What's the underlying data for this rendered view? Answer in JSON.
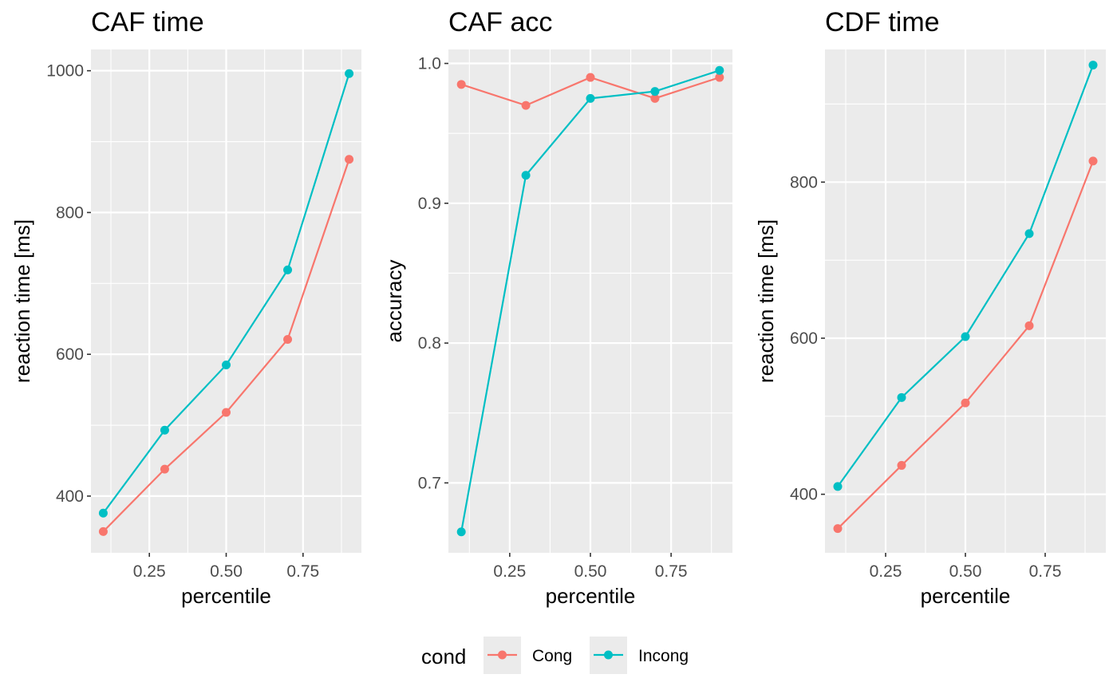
{
  "chart_data": [
    {
      "type": "line",
      "title": "CAF time",
      "xlabel": "percentile",
      "ylabel": "reaction time [ms]",
      "xlim": [
        0.06,
        0.94
      ],
      "ylim": [
        320,
        1030
      ],
      "xticks": [
        0.25,
        0.5,
        0.75
      ],
      "xtick_labels": [
        "0.25",
        "0.50",
        "0.75"
      ],
      "yticks": [
        400,
        600,
        800,
        1000
      ],
      "ytick_labels": [
        "400",
        "600",
        "800",
        "1000"
      ],
      "grid": true,
      "x": [
        0.1,
        0.3,
        0.5,
        0.7,
        0.9
      ],
      "series": [
        {
          "name": "Cong",
          "color": "#f8766d",
          "values": [
            350,
            438,
            518,
            621,
            875
          ]
        },
        {
          "name": "Incong",
          "color": "#00bfc4",
          "values": [
            376,
            493,
            585,
            719,
            996
          ]
        }
      ]
    },
    {
      "type": "line",
      "title": "CAF acc",
      "xlabel": "percentile",
      "ylabel": "accuracy",
      "xlim": [
        0.06,
        0.94
      ],
      "ylim": [
        0.65,
        1.01
      ],
      "xticks": [
        0.25,
        0.5,
        0.75
      ],
      "xtick_labels": [
        "0.25",
        "0.50",
        "0.75"
      ],
      "yticks": [
        0.7,
        0.8,
        0.9,
        1.0
      ],
      "ytick_labels": [
        "0.7",
        "0.8",
        "0.9",
        "1.0"
      ],
      "grid": true,
      "x": [
        0.1,
        0.3,
        0.5,
        0.7,
        0.9
      ],
      "series": [
        {
          "name": "Cong",
          "color": "#f8766d",
          "values": [
            0.985,
            0.97,
            0.99,
            0.975,
            0.99
          ]
        },
        {
          "name": "Incong",
          "color": "#00bfc4",
          "values": [
            0.665,
            0.92,
            0.975,
            0.98,
            0.995
          ]
        }
      ]
    },
    {
      "type": "line",
      "title": "CDF time",
      "xlabel": "percentile",
      "ylabel": "reaction time [ms]",
      "xlim": [
        0.06,
        0.94
      ],
      "ylim": [
        325,
        970
      ],
      "xticks": [
        0.25,
        0.5,
        0.75
      ],
      "xtick_labels": [
        "0.25",
        "0.50",
        "0.75"
      ],
      "yticks": [
        400,
        600,
        800
      ],
      "ytick_labels": [
        "400",
        "600",
        "800"
      ],
      "grid": true,
      "x": [
        0.1,
        0.3,
        0.5,
        0.7,
        0.9
      ],
      "series": [
        {
          "name": "Cong",
          "color": "#f8766d",
          "values": [
            356,
            437,
            517,
            616,
            827
          ]
        },
        {
          "name": "Incong",
          "color": "#00bfc4",
          "values": [
            410,
            524,
            602,
            734,
            950
          ]
        }
      ]
    }
  ],
  "legend": {
    "title": "cond",
    "placement": "bottom",
    "items": [
      {
        "label": "Cong",
        "color": "#f8766d"
      },
      {
        "label": "Incong",
        "color": "#00bfc4"
      }
    ]
  },
  "colors": {
    "panel_background": "#ebebeb",
    "grid_major": "#ffffff",
    "tick_text": "#4d4d4d"
  }
}
